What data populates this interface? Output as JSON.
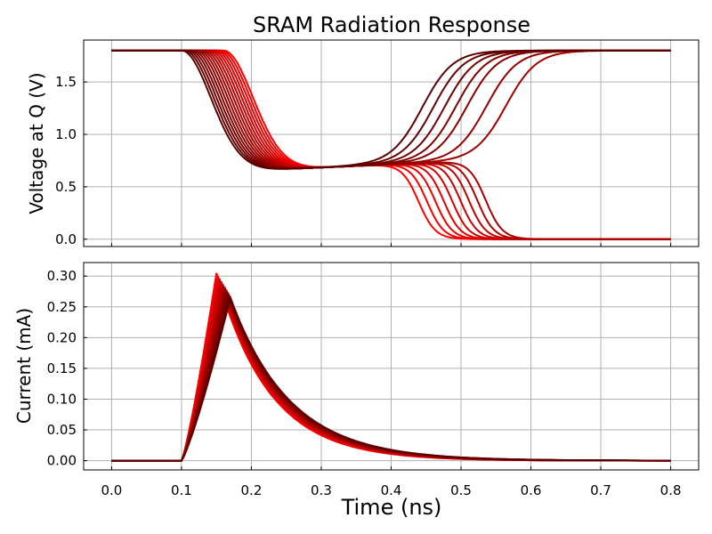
{
  "chart_data": {
    "type": "line",
    "title": "SRAM Radiation Response",
    "xlabel": "Time (ns)",
    "xlim": [
      -0.04,
      0.84
    ],
    "xticks": [
      "0.0",
      "0.1",
      "0.2",
      "0.3",
      "0.4",
      "0.5",
      "0.6",
      "0.7",
      "0.8"
    ],
    "grid": true,
    "colors": {
      "dark": "#5a0000",
      "bright": "#ff0000"
    },
    "series_count": 16,
    "series_note": "family of 16 curves shaded from dark red to bright red; darker curves recover to high level, brighter curves flip",
    "panels": [
      {
        "name": "voltage",
        "ylabel": "Voltage at Q (V)",
        "ylim": [
          -0.07,
          1.9
        ],
        "yticks": [
          "0.0",
          "0.5",
          "1.0",
          "1.5"
        ],
        "pre_strike_level": 1.8,
        "strike_time": 0.1,
        "plateau_level": 0.7,
        "recovered_level": 1.8,
        "flipped_level": 0.0,
        "recovering_curves_shown": 7,
        "flipping_curves_shown": 9
      },
      {
        "name": "current",
        "ylabel": "Current (mA)",
        "ylim": [
          -0.015,
          0.322
        ],
        "yticks": [
          "0.00",
          "0.05",
          "0.10",
          "0.15",
          "0.20",
          "0.25",
          "0.30"
        ],
        "onset_time": 0.1,
        "peak_range": [
          0.265,
          0.305
        ],
        "peak_time_range": [
          0.15,
          0.17
        ]
      }
    ]
  }
}
